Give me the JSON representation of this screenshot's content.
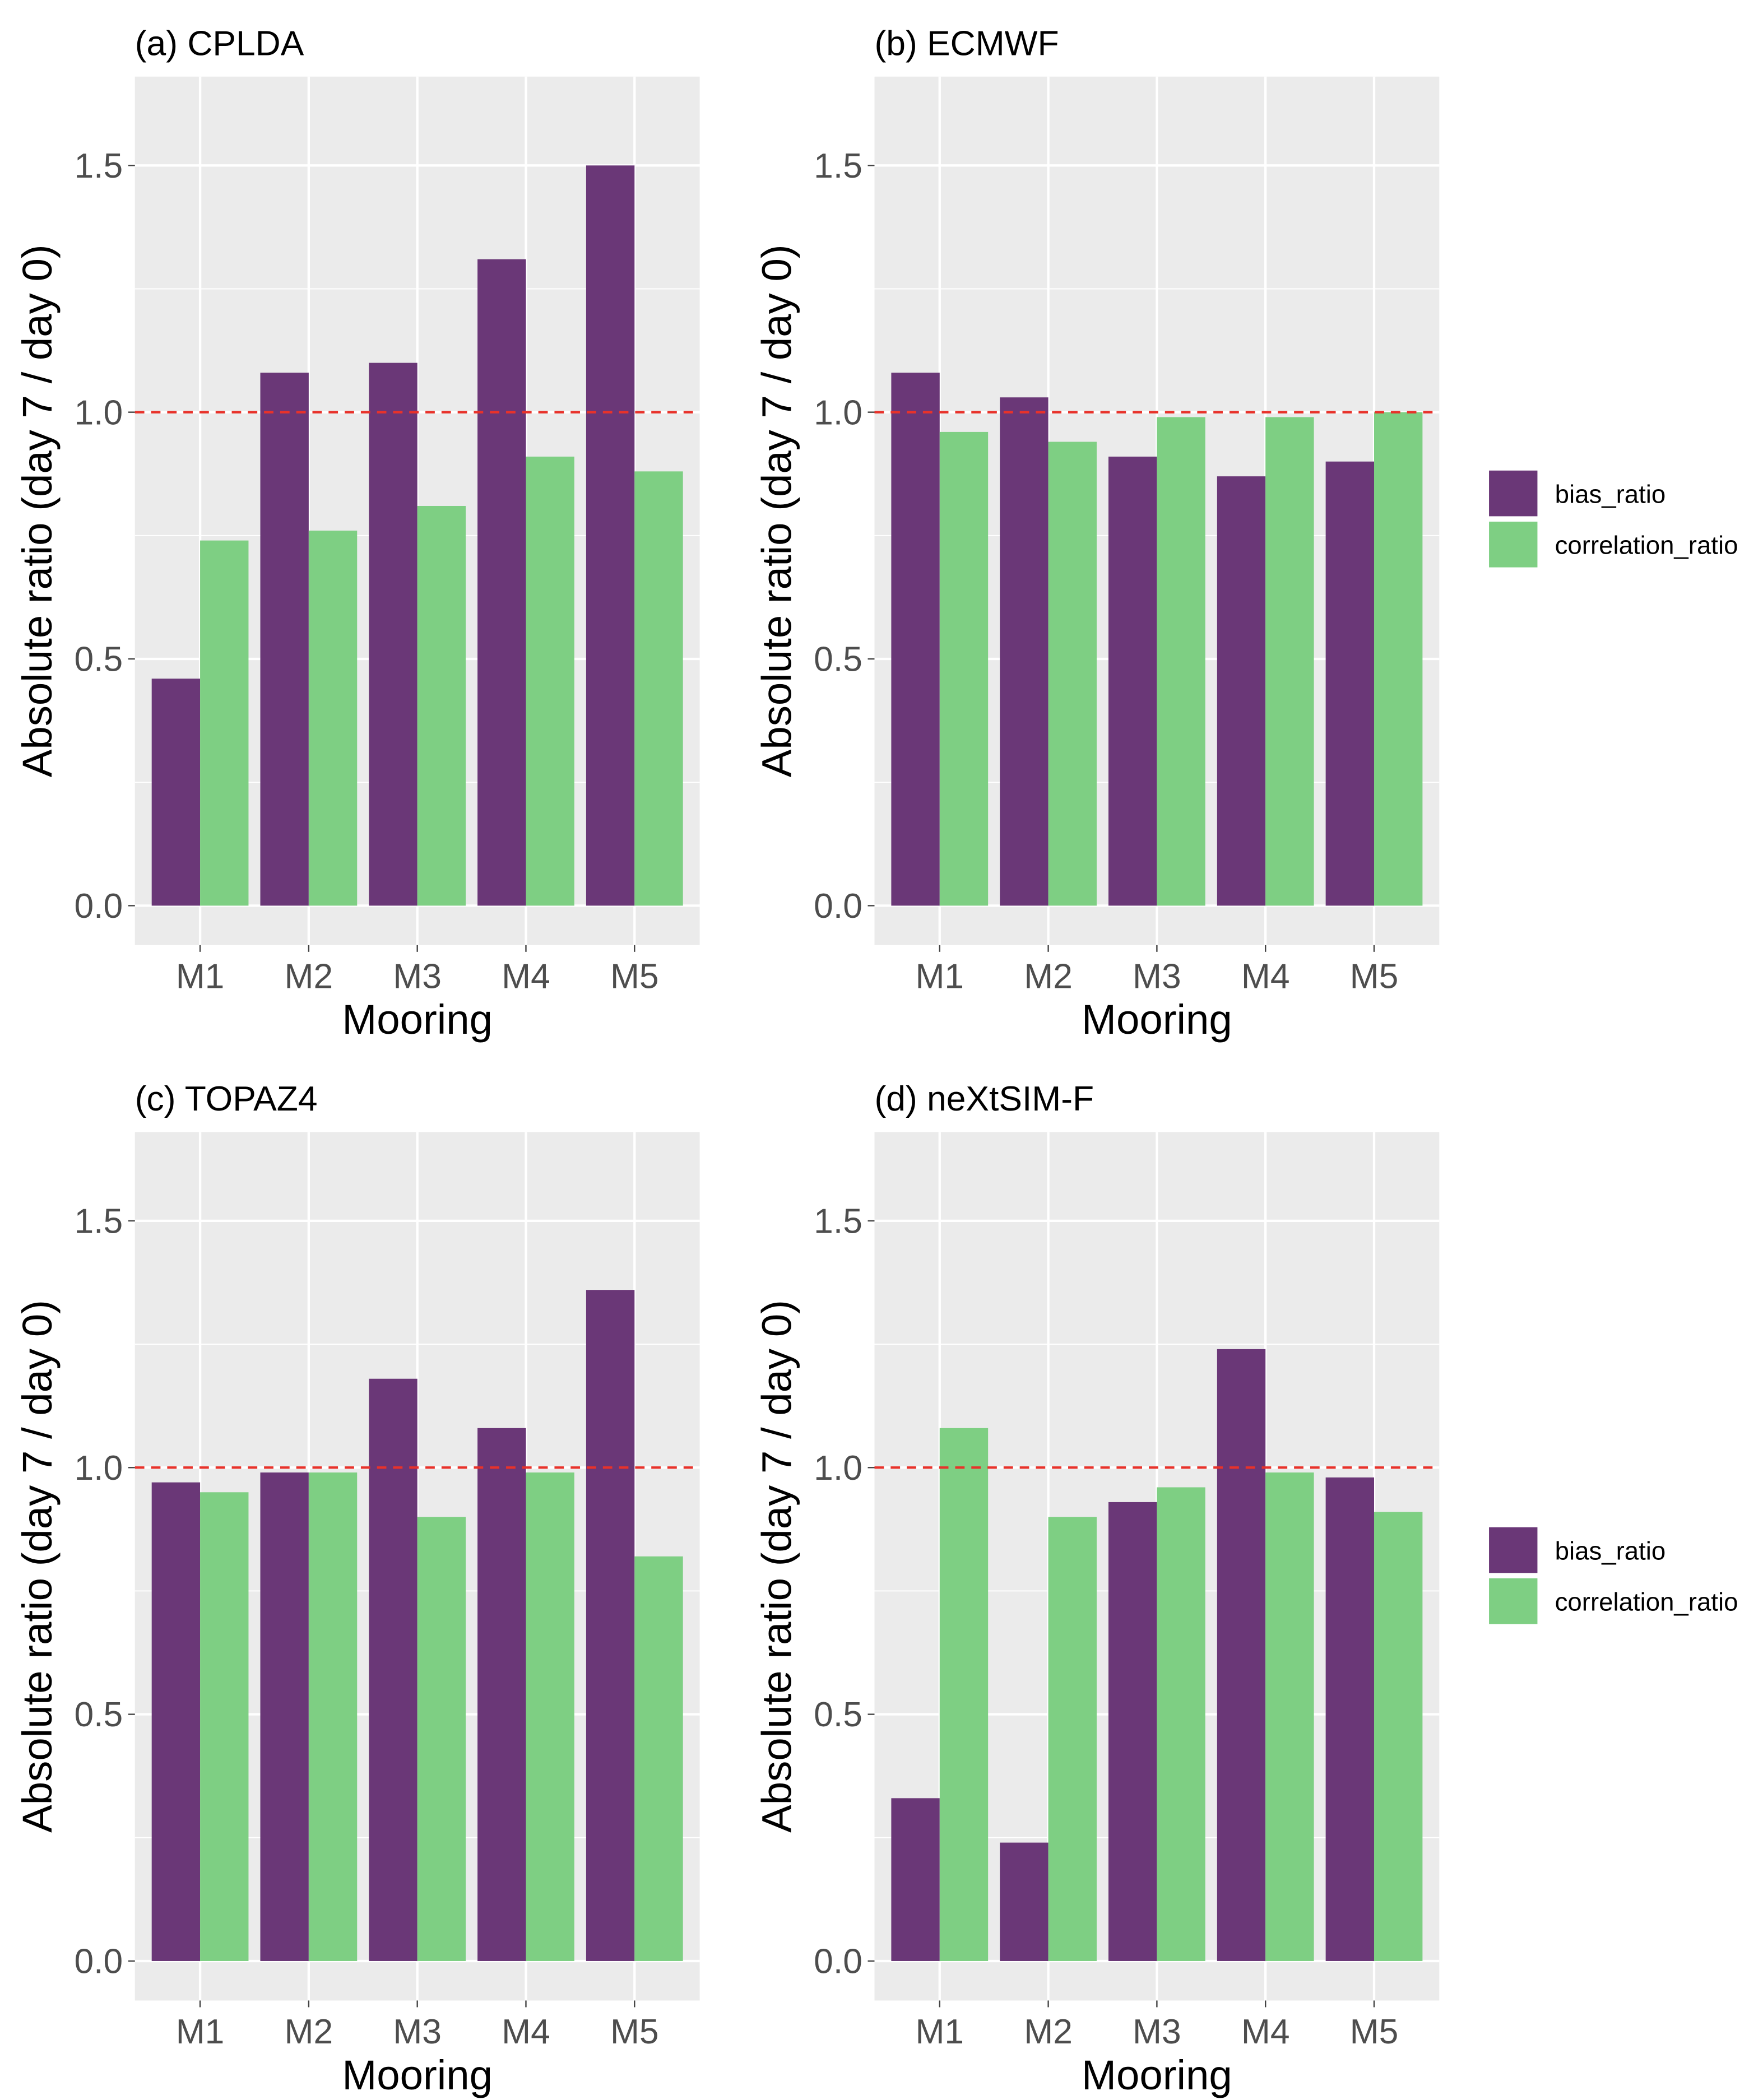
{
  "chart_data": [
    {
      "type": "bar",
      "title": "(a) CPLDA",
      "xlabel": "Mooring",
      "ylabel": "Absolute ratio (day 7 / day 0)",
      "categories": [
        "M1",
        "M2",
        "M3",
        "M4",
        "M5"
      ],
      "ylim": [
        -0.08,
        1.68
      ],
      "yticks": [
        "0.0",
        "0.5",
        "1.0",
        "1.5"
      ],
      "grid": true,
      "reference_line": 1.0,
      "series": [
        {
          "name": "bias_ratio",
          "values": [
            0.46,
            1.08,
            1.1,
            1.31,
            1.5
          ]
        },
        {
          "name": "correlation_ratio",
          "values": [
            0.74,
            0.76,
            0.81,
            0.91,
            0.88
          ]
        }
      ]
    },
    {
      "type": "bar",
      "title": "(b) ECMWF",
      "xlabel": "Mooring",
      "ylabel": "Absolute ratio (day 7 / day 0)",
      "categories": [
        "M1",
        "M2",
        "M3",
        "M4",
        "M5"
      ],
      "ylim": [
        -0.08,
        1.68
      ],
      "yticks": [
        "0.0",
        "0.5",
        "1.0",
        "1.5"
      ],
      "grid": true,
      "reference_line": 1.0,
      "series": [
        {
          "name": "bias_ratio",
          "values": [
            1.08,
            1.03,
            0.91,
            0.87,
            0.9
          ]
        },
        {
          "name": "correlation_ratio",
          "values": [
            0.96,
            0.94,
            0.99,
            0.99,
            1.0
          ]
        }
      ]
    },
    {
      "type": "bar",
      "title": "(c) TOPAZ4",
      "xlabel": "Mooring",
      "ylabel": "Absolute ratio (day 7 / day 0)",
      "categories": [
        "M1",
        "M2",
        "M3",
        "M4",
        "M5"
      ],
      "ylim": [
        -0.08,
        1.68
      ],
      "yticks": [
        "0.0",
        "0.5",
        "1.0",
        "1.5"
      ],
      "grid": true,
      "reference_line": 1.0,
      "series": [
        {
          "name": "bias_ratio",
          "values": [
            0.97,
            0.99,
            1.18,
            1.08,
            1.36
          ]
        },
        {
          "name": "correlation_ratio",
          "values": [
            0.95,
            0.99,
            0.9,
            0.99,
            0.82
          ]
        }
      ]
    },
    {
      "type": "bar",
      "title": "(d) neXtSIM-F",
      "xlabel": "Mooring",
      "ylabel": "Absolute ratio (day 7 / day 0)",
      "categories": [
        "M1",
        "M2",
        "M3",
        "M4",
        "M5"
      ],
      "ylim": [
        -0.08,
        1.68
      ],
      "yticks": [
        "0.0",
        "0.5",
        "1.0",
        "1.5"
      ],
      "grid": true,
      "reference_line": 1.0,
      "series": [
        {
          "name": "bias_ratio",
          "values": [
            0.33,
            0.24,
            0.93,
            1.24,
            0.98
          ]
        },
        {
          "name": "correlation_ratio",
          "values": [
            1.08,
            0.9,
            0.96,
            0.99,
            0.91
          ]
        }
      ]
    }
  ],
  "legend": {
    "placement": "right",
    "entries": [
      "bias_ratio",
      "correlation_ratio"
    ]
  },
  "colors": {
    "bias_ratio": "#6a3777",
    "correlation_ratio": "#7ecf83",
    "panel_bg": "#ebebeb",
    "ref_line": "#e8322a"
  }
}
